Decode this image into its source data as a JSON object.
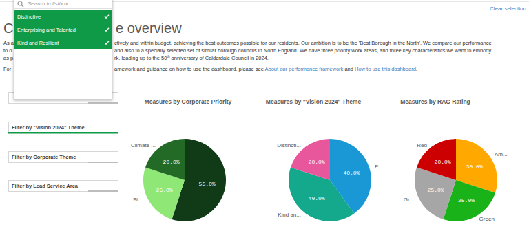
{
  "toolbar": {
    "link": "Clear selection"
  },
  "listbox": {
    "placeholder": "Search in listbox",
    "items": [
      "Distinctive",
      "Enterprising and Talented",
      "Kind and Resilient"
    ]
  },
  "header": {
    "title": [
      "C",
      "e overview"
    ],
    "intro": [
      {
        "left": "As a",
        "parts": [
          {
            "text": "ctively and within budget, achieving the best outcomes possible for our residents. Our ambition is to be the 'Best Borough in the North'. We compare our performance"
          }
        ]
      },
      {
        "left": "to o",
        "parts": [
          {
            "text": "and also to a specially selected set of similar borough councils in North England. We have three priority work areas, and three key characteristics we want to embody"
          }
        ]
      },
      {
        "left": "as p",
        "parts": [
          {
            "text": "rk, leading up to the 50"
          },
          {
            "text": "th",
            "style": "superscript"
          },
          {
            "text": " anniversary of Calderdale Council in 2024."
          }
        ]
      },
      {
        "left": "For",
        "parts": [
          {
            "text": "amework and guidance on how to use the dashboard, please see "
          },
          {
            "text": "About our performance framework",
            "style": "link"
          },
          {
            "text": " and "
          },
          {
            "text": "How to use this dashboard",
            "style": "link"
          },
          {
            "text": "."
          }
        ]
      }
    ]
  },
  "filters": [
    "Filter by \"Vision 2024\" Theme",
    "Filter by Corporate Theme",
    "Filter by Lead Service Area"
  ],
  "chart_data": [
    {
      "type": "pie",
      "title": "Measures by Corporate Priority",
      "categories": [
        null,
        "St...",
        "Climate ..."
      ],
      "values": [
        55,
        25,
        20
      ],
      "value_labels": [
        "55.0%",
        "25.0%",
        "20.0%"
      ],
      "colors": [
        "#113b17",
        "#8fe876",
        "#236a27"
      ],
      "data_labels": true
    },
    {
      "type": "pie",
      "title": "Measures by \"Vision 2024\" Theme",
      "categories": [
        "E...",
        "Kind an...",
        "Distincti..."
      ],
      "values": [
        40,
        40,
        20
      ],
      "value_labels": [
        "40.0%",
        "40.0%",
        "20.0%"
      ],
      "colors": [
        "#1a98d5",
        "#14a88d",
        "#e8579b"
      ],
      "data_labels": true
    },
    {
      "type": "pie",
      "title": "Measures by RAG Rating",
      "categories": [
        "Am...",
        "Green",
        "Gr...",
        "Red"
      ],
      "values": [
        30,
        25,
        25,
        20
      ],
      "value_labels": [
        "30.0%",
        "25.0%",
        "25.0%",
        "20.0%"
      ],
      "colors": [
        "#ffa800",
        "#19b219",
        "#a6a6a6",
        "#cc0000"
      ],
      "data_labels": true
    }
  ]
}
